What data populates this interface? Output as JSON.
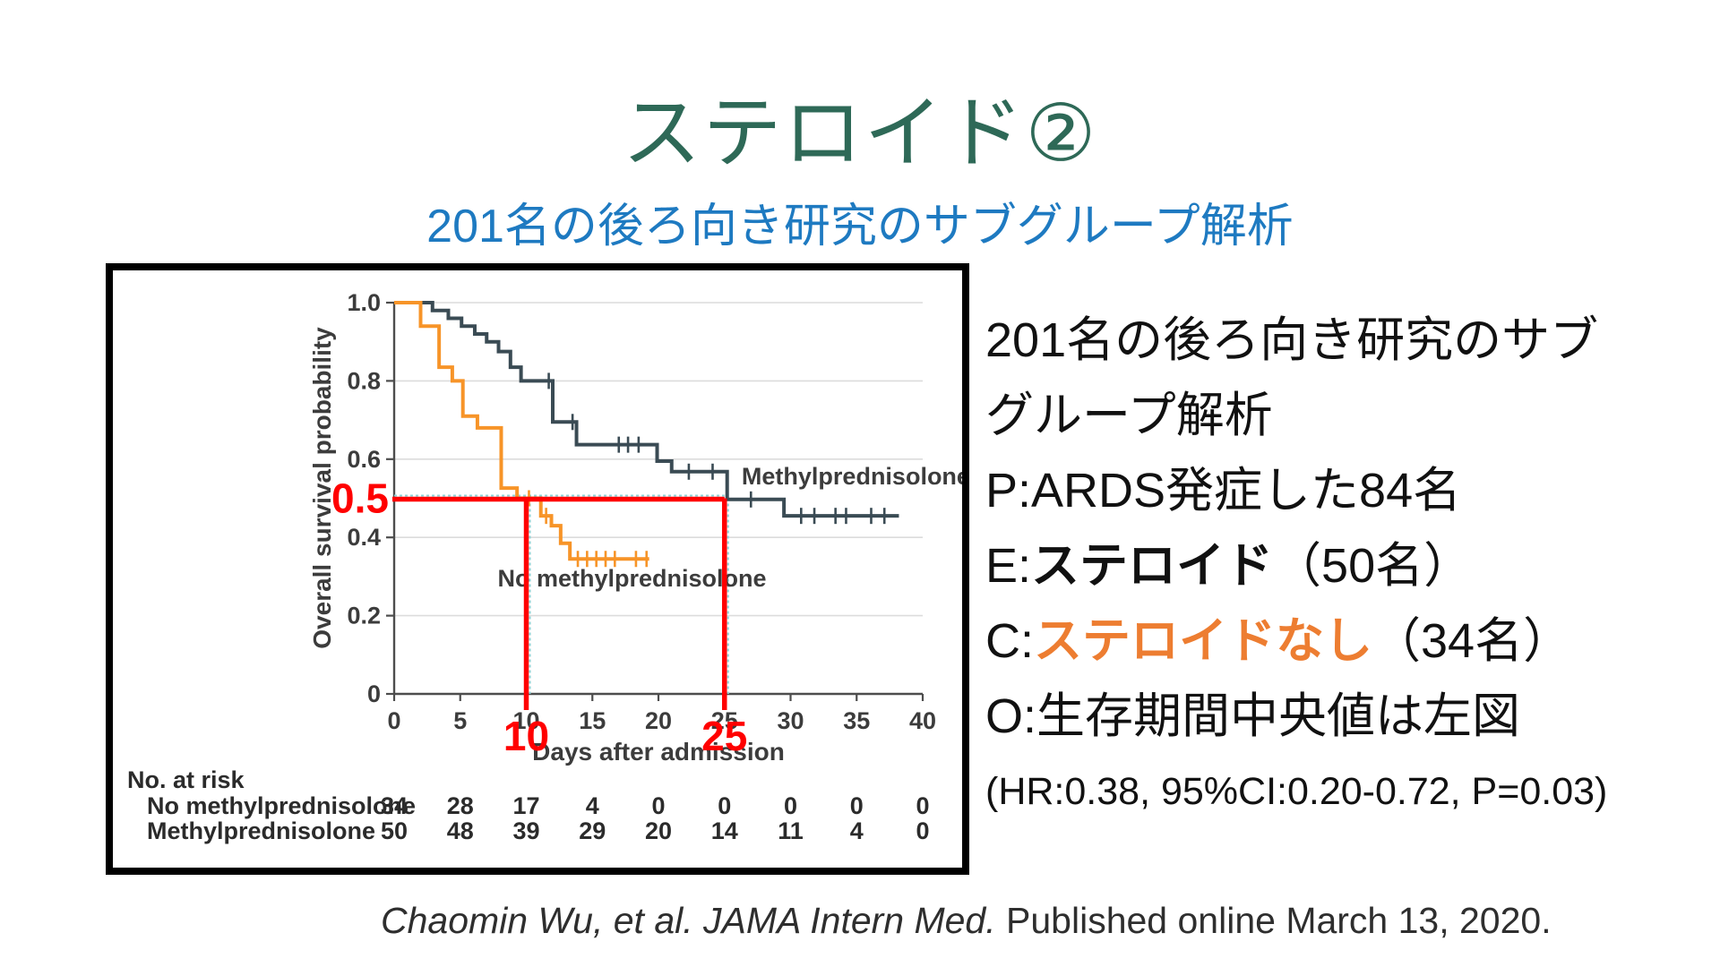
{
  "slide": {
    "title": "ステロイド②",
    "subtitle": "201名の後ろ向き研究のサブグループ解析",
    "citation_italic": "Chaomin Wu, et al. JAMA Intern Med.",
    "citation_normal": " Published online March 13, 2020."
  },
  "annotation_panel": {
    "line1": "201名の後ろ向き研究のサブ",
    "line2": "グループ解析",
    "p_prefix": "P:",
    "p_text": "ARDS発症した84名",
    "e_prefix": "E:",
    "e_bold": "ステロイド",
    "e_suffix": "（50名）",
    "c_prefix": "C:",
    "c_bold": "ステロイドなし",
    "c_suffix": "（34名）",
    "o_prefix": "O:",
    "o_text": "生存期間中央値は左図",
    "stats_line": "(HR:0.38, 95%CI:0.20-0.72, P=0.03)"
  },
  "colors": {
    "title_green": "#2E6957",
    "subtitle_blue": "#1E7AC1",
    "highlight_orange": "#ED7D31",
    "annotation_red": "#FF0000",
    "curve_dark": "#3A4B54",
    "curve_orange": "#F79428",
    "gridline": "#DCDCDC",
    "axis_text": "#3C3C3C",
    "median_guide_teal": "#8ED3D6"
  },
  "chart_data": {
    "type": "line",
    "subtype": "kaplan-meier-step",
    "title": "",
    "xlabel": "Days after admission",
    "ylabel": "Overall survival probability",
    "xlim": [
      0,
      40
    ],
    "ylim": [
      0,
      1.0
    ],
    "grid": true,
    "xticks": [
      0,
      5,
      10,
      15,
      20,
      25,
      30,
      35,
      40
    ],
    "yticks": [
      {
        "v": 1.0,
        "label": "1.0"
      },
      {
        "v": 0.8,
        "label": "0.8"
      },
      {
        "v": 0.6,
        "label": "0.6"
      },
      {
        "v": 0.4,
        "label": "0.4"
      },
      {
        "v": 0.2,
        "label": "0.2"
      },
      {
        "v": 0.0,
        "label": "0"
      }
    ],
    "series": [
      {
        "name": "Methylprednisolone",
        "color": "#3A4B54",
        "steps": [
          [
            0,
            1.0
          ],
          [
            2.9,
            0.98
          ],
          [
            4.1,
            0.96
          ],
          [
            5.1,
            0.94
          ],
          [
            6.1,
            0.92
          ],
          [
            7.0,
            0.9
          ],
          [
            7.9,
            0.875
          ],
          [
            8.8,
            0.835
          ],
          [
            9.6,
            0.8
          ],
          [
            12.0,
            0.695
          ],
          [
            13.8,
            0.637
          ],
          [
            19.9,
            0.595
          ],
          [
            21.0,
            0.568
          ],
          [
            25.2,
            0.497
          ],
          [
            29.5,
            0.455
          ]
        ],
        "end_day": 38.2,
        "censors": [
          [
            11.7,
            0.8
          ],
          [
            13.5,
            0.695
          ],
          [
            17.0,
            0.637
          ],
          [
            17.7,
            0.637
          ],
          [
            18.5,
            0.637
          ],
          [
            22.3,
            0.568
          ],
          [
            24.1,
            0.568
          ],
          [
            27.0,
            0.497
          ],
          [
            30.8,
            0.455
          ],
          [
            31.8,
            0.455
          ],
          [
            33.4,
            0.455
          ],
          [
            34.2,
            0.455
          ],
          [
            36.1,
            0.455
          ],
          [
            37.1,
            0.455
          ]
        ],
        "label_pos": {
          "day": 26.3,
          "p": 0.535
        }
      },
      {
        "name": "No methylprednisolone",
        "color": "#F79428",
        "steps": [
          [
            0,
            1.0
          ],
          [
            2.0,
            0.94
          ],
          [
            3.4,
            0.835
          ],
          [
            4.4,
            0.8
          ],
          [
            5.2,
            0.71
          ],
          [
            6.3,
            0.68
          ],
          [
            8.1,
            0.526
          ],
          [
            9.3,
            0.5
          ],
          [
            11.1,
            0.455
          ],
          [
            11.9,
            0.43
          ],
          [
            12.6,
            0.385
          ],
          [
            13.3,
            0.345
          ]
        ],
        "end_day": 19.3,
        "censors": [
          [
            10.2,
            0.5
          ],
          [
            11.5,
            0.455
          ],
          [
            13.9,
            0.345
          ],
          [
            14.6,
            0.345
          ],
          [
            15.3,
            0.345
          ],
          [
            16.0,
            0.345
          ],
          [
            16.7,
            0.345
          ],
          [
            18.3,
            0.345
          ],
          [
            19.1,
            0.345
          ]
        ],
        "label_pos": {
          "day": 18.0,
          "p": 0.275
        }
      }
    ],
    "annotations": {
      "red": "#FF0000",
      "half_label": "0.5",
      "median_probability": 0.5,
      "median_days": [
        10,
        25
      ],
      "median_day_labels": [
        "10",
        "25"
      ]
    },
    "risk_table": {
      "title": "No. at risk",
      "rows": [
        {
          "label": "No methylprednisolone",
          "values": [
            34,
            28,
            17,
            4,
            0,
            0,
            0,
            0,
            0
          ]
        },
        {
          "label": "Methylprednisolone",
          "values": [
            50,
            48,
            39,
            29,
            20,
            14,
            11,
            4,
            0
          ]
        }
      ]
    }
  }
}
